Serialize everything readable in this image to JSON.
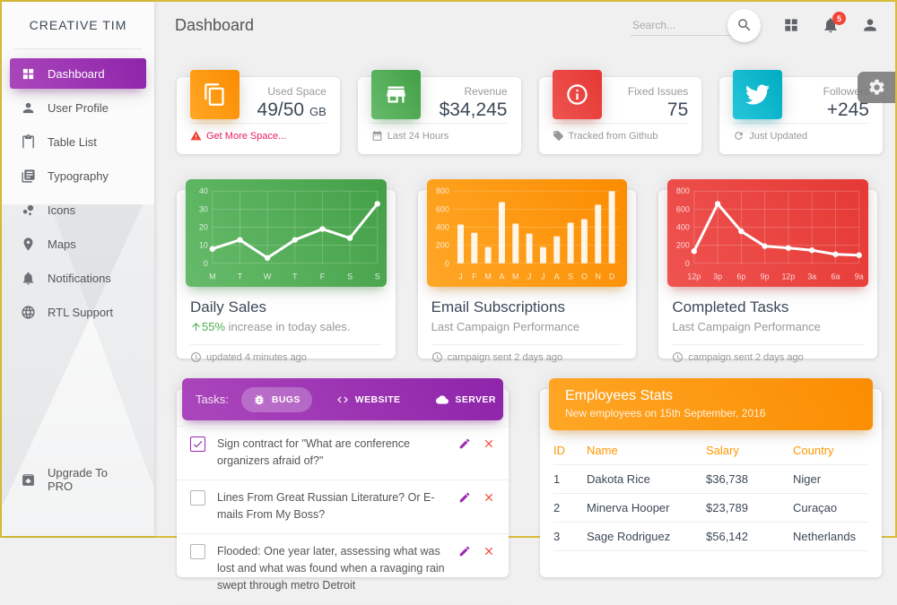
{
  "app": {
    "brand": "CREATIVE TIM",
    "page_title": "Dashboard"
  },
  "topnav": {
    "search_placeholder": "Search...",
    "notification_count": "5"
  },
  "sidebar": {
    "items": [
      {
        "label": "Dashboard",
        "active": true
      },
      {
        "label": "User Profile",
        "active": false
      },
      {
        "label": "Table List",
        "active": false
      },
      {
        "label": "Typography",
        "active": false
      },
      {
        "label": "Icons",
        "active": false
      },
      {
        "label": "Maps",
        "active": false
      },
      {
        "label": "Notifications",
        "active": false
      },
      {
        "label": "RTL Support",
        "active": false
      }
    ],
    "upgrade_label": "Upgrade To PRO"
  },
  "stat_cards": [
    {
      "category": "Used Space",
      "value": "49/50",
      "unit": "GB",
      "footer": "Get More Space...",
      "color": "#ff9800"
    },
    {
      "category": "Revenue",
      "value": "$34,245",
      "unit": "",
      "footer": "Last 24 Hours",
      "color": "#4caf50"
    },
    {
      "category": "Fixed Issues",
      "value": "75",
      "unit": "",
      "footer": "Tracked from Github",
      "color": "#f44336"
    },
    {
      "category": "Followers",
      "value": "+245",
      "unit": "",
      "footer": "Just Updated",
      "color": "#00bcd4"
    }
  ],
  "chart_cards": [
    {
      "title": "Daily Sales",
      "subtitle_accent": "55%",
      "subtitle_rest": " increase in today sales.",
      "footer": "updated 4 minutes ago"
    },
    {
      "title": "Email Subscriptions",
      "subtitle": "Last Campaign Performance",
      "footer": "campaign sent 2 days ago"
    },
    {
      "title": "Completed Tasks",
      "subtitle": "Last Campaign Performance",
      "footer": "campaign sent 2 days ago"
    }
  ],
  "chart_data": [
    {
      "type": "line",
      "title": "Daily Sales",
      "categories": [
        "M",
        "T",
        "W",
        "T",
        "F",
        "S",
        "S"
      ],
      "values": [
        8,
        13,
        3,
        13,
        19,
        14,
        33
      ],
      "ylim": [
        0,
        40
      ],
      "yticks": [
        0,
        10,
        20,
        30,
        40
      ],
      "panel_color": "#4caf50",
      "line_color": "#ffffff",
      "grid": true,
      "legend": false
    },
    {
      "type": "bar",
      "title": "Email Subscriptions",
      "categories": [
        "J",
        "F",
        "M",
        "A",
        "M",
        "J",
        "J",
        "A",
        "S",
        "O",
        "N",
        "D"
      ],
      "values": [
        430,
        340,
        180,
        680,
        440,
        330,
        180,
        300,
        450,
        490,
        650,
        800
      ],
      "ylim": [
        0,
        800
      ],
      "yticks": [
        0,
        200,
        400,
        600,
        800
      ],
      "panel_color": "#ff9800",
      "bar_color": "#ffffff",
      "grid": true,
      "legend": false
    },
    {
      "type": "line",
      "title": "Completed Tasks",
      "categories": [
        "12p",
        "3p",
        "6p",
        "9p",
        "12p",
        "3a",
        "6a",
        "9a"
      ],
      "values": [
        135,
        660,
        355,
        190,
        170,
        145,
        100,
        90
      ],
      "ylim": [
        0,
        800
      ],
      "yticks": [
        0,
        200,
        400,
        600,
        800
      ],
      "panel_color": "#f44336",
      "line_color": "#ffffff",
      "grid": true,
      "legend": false
    }
  ],
  "tasks": {
    "header_label": "Tasks:",
    "tabs": [
      {
        "label": "BUGS",
        "active": true
      },
      {
        "label": "WEBSITE",
        "active": false
      },
      {
        "label": "SERVER",
        "active": false
      }
    ],
    "items": [
      {
        "checked": true,
        "text": "Sign contract for \"What are conference organizers afraid of?\""
      },
      {
        "checked": false,
        "text": "Lines From Great Russian Literature? Or E-mails From My Boss?"
      },
      {
        "checked": false,
        "text": "Flooded: One year later, assessing what was lost and what was found when a ravaging rain swept through metro Detroit"
      }
    ]
  },
  "employees": {
    "title": "Employees Stats",
    "subtitle": "New employees on 15th September, 2016",
    "columns": [
      "ID",
      "Name",
      "Salary",
      "Country"
    ],
    "rows": [
      [
        "1",
        "Dakota Rice",
        "$36,738",
        "Niger"
      ],
      [
        "2",
        "Minerva Hooper",
        "$23,789",
        "Curaçao"
      ],
      [
        "3",
        "Sage Rodriguez",
        "$56,142",
        "Netherlands"
      ]
    ]
  },
  "colors": {
    "primary_purple": "#9c27b0",
    "warning_orange": "#ff9800",
    "success_green": "#4caf50",
    "danger_red": "#f44336",
    "info_cyan": "#00bcd4",
    "pink_link": "#e91e63",
    "table_header_orange": "#ff9800",
    "frame_border": "#d8bc3a",
    "background": "#f0f0f1"
  }
}
